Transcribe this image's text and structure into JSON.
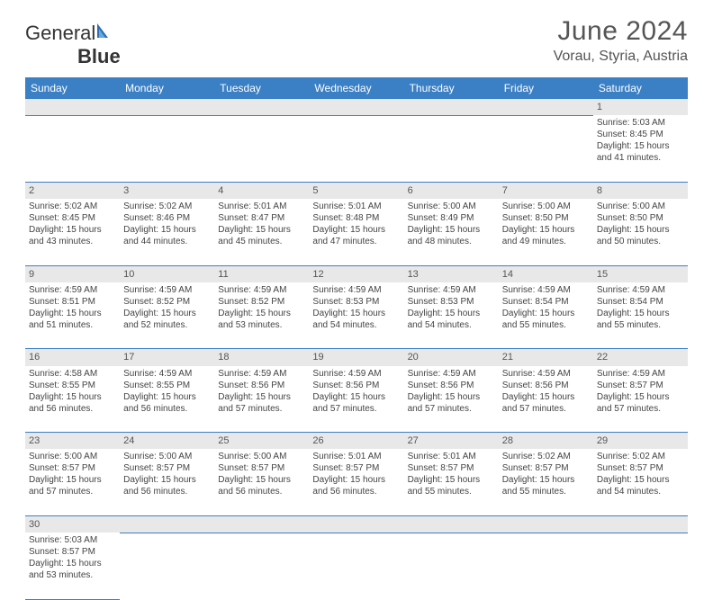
{
  "branding": {
    "name_part1": "General",
    "name_part2": "Blue"
  },
  "header": {
    "title": "June 2024",
    "location": "Vorau, Styria, Austria"
  },
  "colors": {
    "header_bg": "#3b7fc4",
    "header_fg": "#ffffff",
    "daynum_bg": "#e8e8e8",
    "border": "#3b7fc4",
    "text": "#444444"
  },
  "weekdays": [
    "Sunday",
    "Monday",
    "Tuesday",
    "Wednesday",
    "Thursday",
    "Friday",
    "Saturday"
  ],
  "weeks": [
    [
      null,
      null,
      null,
      null,
      null,
      null,
      {
        "n": "1",
        "sr": "Sunrise: 5:03 AM",
        "ss": "Sunset: 8:45 PM",
        "d1": "Daylight: 15 hours",
        "d2": "and 41 minutes."
      }
    ],
    [
      {
        "n": "2",
        "sr": "Sunrise: 5:02 AM",
        "ss": "Sunset: 8:45 PM",
        "d1": "Daylight: 15 hours",
        "d2": "and 43 minutes."
      },
      {
        "n": "3",
        "sr": "Sunrise: 5:02 AM",
        "ss": "Sunset: 8:46 PM",
        "d1": "Daylight: 15 hours",
        "d2": "and 44 minutes."
      },
      {
        "n": "4",
        "sr": "Sunrise: 5:01 AM",
        "ss": "Sunset: 8:47 PM",
        "d1": "Daylight: 15 hours",
        "d2": "and 45 minutes."
      },
      {
        "n": "5",
        "sr": "Sunrise: 5:01 AM",
        "ss": "Sunset: 8:48 PM",
        "d1": "Daylight: 15 hours",
        "d2": "and 47 minutes."
      },
      {
        "n": "6",
        "sr": "Sunrise: 5:00 AM",
        "ss": "Sunset: 8:49 PM",
        "d1": "Daylight: 15 hours",
        "d2": "and 48 minutes."
      },
      {
        "n": "7",
        "sr": "Sunrise: 5:00 AM",
        "ss": "Sunset: 8:50 PM",
        "d1": "Daylight: 15 hours",
        "d2": "and 49 minutes."
      },
      {
        "n": "8",
        "sr": "Sunrise: 5:00 AM",
        "ss": "Sunset: 8:50 PM",
        "d1": "Daylight: 15 hours",
        "d2": "and 50 minutes."
      }
    ],
    [
      {
        "n": "9",
        "sr": "Sunrise: 4:59 AM",
        "ss": "Sunset: 8:51 PM",
        "d1": "Daylight: 15 hours",
        "d2": "and 51 minutes."
      },
      {
        "n": "10",
        "sr": "Sunrise: 4:59 AM",
        "ss": "Sunset: 8:52 PM",
        "d1": "Daylight: 15 hours",
        "d2": "and 52 minutes."
      },
      {
        "n": "11",
        "sr": "Sunrise: 4:59 AM",
        "ss": "Sunset: 8:52 PM",
        "d1": "Daylight: 15 hours",
        "d2": "and 53 minutes."
      },
      {
        "n": "12",
        "sr": "Sunrise: 4:59 AM",
        "ss": "Sunset: 8:53 PM",
        "d1": "Daylight: 15 hours",
        "d2": "and 54 minutes."
      },
      {
        "n": "13",
        "sr": "Sunrise: 4:59 AM",
        "ss": "Sunset: 8:53 PM",
        "d1": "Daylight: 15 hours",
        "d2": "and 54 minutes."
      },
      {
        "n": "14",
        "sr": "Sunrise: 4:59 AM",
        "ss": "Sunset: 8:54 PM",
        "d1": "Daylight: 15 hours",
        "d2": "and 55 minutes."
      },
      {
        "n": "15",
        "sr": "Sunrise: 4:59 AM",
        "ss": "Sunset: 8:54 PM",
        "d1": "Daylight: 15 hours",
        "d2": "and 55 minutes."
      }
    ],
    [
      {
        "n": "16",
        "sr": "Sunrise: 4:58 AM",
        "ss": "Sunset: 8:55 PM",
        "d1": "Daylight: 15 hours",
        "d2": "and 56 minutes."
      },
      {
        "n": "17",
        "sr": "Sunrise: 4:59 AM",
        "ss": "Sunset: 8:55 PM",
        "d1": "Daylight: 15 hours",
        "d2": "and 56 minutes."
      },
      {
        "n": "18",
        "sr": "Sunrise: 4:59 AM",
        "ss": "Sunset: 8:56 PM",
        "d1": "Daylight: 15 hours",
        "d2": "and 57 minutes."
      },
      {
        "n": "19",
        "sr": "Sunrise: 4:59 AM",
        "ss": "Sunset: 8:56 PM",
        "d1": "Daylight: 15 hours",
        "d2": "and 57 minutes."
      },
      {
        "n": "20",
        "sr": "Sunrise: 4:59 AM",
        "ss": "Sunset: 8:56 PM",
        "d1": "Daylight: 15 hours",
        "d2": "and 57 minutes."
      },
      {
        "n": "21",
        "sr": "Sunrise: 4:59 AM",
        "ss": "Sunset: 8:56 PM",
        "d1": "Daylight: 15 hours",
        "d2": "and 57 minutes."
      },
      {
        "n": "22",
        "sr": "Sunrise: 4:59 AM",
        "ss": "Sunset: 8:57 PM",
        "d1": "Daylight: 15 hours",
        "d2": "and 57 minutes."
      }
    ],
    [
      {
        "n": "23",
        "sr": "Sunrise: 5:00 AM",
        "ss": "Sunset: 8:57 PM",
        "d1": "Daylight: 15 hours",
        "d2": "and 57 minutes."
      },
      {
        "n": "24",
        "sr": "Sunrise: 5:00 AM",
        "ss": "Sunset: 8:57 PM",
        "d1": "Daylight: 15 hours",
        "d2": "and 56 minutes."
      },
      {
        "n": "25",
        "sr": "Sunrise: 5:00 AM",
        "ss": "Sunset: 8:57 PM",
        "d1": "Daylight: 15 hours",
        "d2": "and 56 minutes."
      },
      {
        "n": "26",
        "sr": "Sunrise: 5:01 AM",
        "ss": "Sunset: 8:57 PM",
        "d1": "Daylight: 15 hours",
        "d2": "and 56 minutes."
      },
      {
        "n": "27",
        "sr": "Sunrise: 5:01 AM",
        "ss": "Sunset: 8:57 PM",
        "d1": "Daylight: 15 hours",
        "d2": "and 55 minutes."
      },
      {
        "n": "28",
        "sr": "Sunrise: 5:02 AM",
        "ss": "Sunset: 8:57 PM",
        "d1": "Daylight: 15 hours",
        "d2": "and 55 minutes."
      },
      {
        "n": "29",
        "sr": "Sunrise: 5:02 AM",
        "ss": "Sunset: 8:57 PM",
        "d1": "Daylight: 15 hours",
        "d2": "and 54 minutes."
      }
    ],
    [
      {
        "n": "30",
        "sr": "Sunrise: 5:03 AM",
        "ss": "Sunset: 8:57 PM",
        "d1": "Daylight: 15 hours",
        "d2": "and 53 minutes."
      },
      null,
      null,
      null,
      null,
      null,
      null
    ]
  ]
}
